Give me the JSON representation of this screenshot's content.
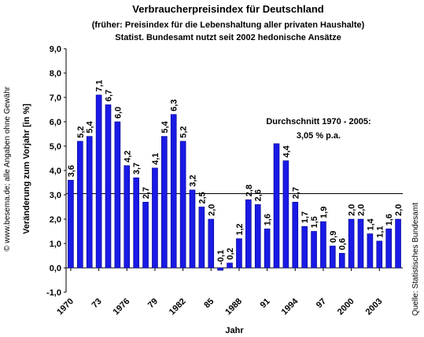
{
  "chart_data": {
    "type": "bar",
    "title": "Verbraucherpreisindex für Deutschland",
    "subtitle": "(früher: Preisindex für die Lebenshaltung aller privaten Haushalte)",
    "subtitle2": "Statist. Bundesamt nutzt seit 2002 hedonische Ansätze",
    "ylabel": "Veränderung zum Vorjahr [in %]",
    "xlabel": "Jahr",
    "copyright": "© www.besema.de; alle Angaben ohne Gewähr",
    "source": "Quelle: Statistisches Bundesamt",
    "annotation": "Durchschnitt 1970 - 2005:",
    "annotation2": "3,05 % p.a.",
    "average": 3.05,
    "color": "#1a1ae6",
    "categories": [
      "1970",
      null,
      null,
      "73",
      null,
      null,
      "1976",
      null,
      null,
      "79",
      null,
      null,
      "1982",
      null,
      null,
      "85",
      null,
      null,
      "1988",
      null,
      null,
      "91",
      null,
      null,
      "1994",
      null,
      null,
      "97",
      null,
      null,
      "2000",
      null,
      null,
      "2003",
      null,
      null
    ],
    "values": [
      3.6,
      5.2,
      5.4,
      7.1,
      6.7,
      6.0,
      4.2,
      3.7,
      2.7,
      4.1,
      5.4,
      6.3,
      5.2,
      3.2,
      2.5,
      2.0,
      -0.1,
      0.2,
      1.2,
      2.8,
      2.6,
      1.6,
      5.1,
      4.4,
      2.7,
      1.7,
      1.5,
      1.9,
      0.9,
      0.6,
      2.0,
      2.0,
      1.4,
      1.1,
      1.6,
      2.0
    ],
    "value_labels": [
      "3,6",
      "5,2",
      "5,4",
      "7,1",
      "6,7",
      "6,0",
      "4,2",
      "3,7",
      "2,7",
      "4,1",
      "5,4",
      "6,3",
      "5,2",
      "3,2",
      "2,5",
      "2,0",
      "-0,1",
      "0,2",
      "1,2",
      "2,8",
      "2,6",
      "1,6",
      null,
      "4,4",
      "2,7",
      "1,7",
      "1,5",
      "1,9",
      "0,9",
      "0,6",
      "2,0",
      "2,0",
      "1,4",
      "1,1",
      "1,6",
      "2,0"
    ],
    "ylim": [
      -1,
      9
    ],
    "yticks": [
      {
        "value": -1,
        "label": "-1,0"
      },
      {
        "value": 0,
        "label": "0,0"
      },
      {
        "value": 1,
        "label": "1,0"
      },
      {
        "value": 2,
        "label": "2,0"
      },
      {
        "value": 3,
        "label": "3,0"
      },
      {
        "value": 4,
        "label": "4,0"
      },
      {
        "value": 5,
        "label": "5,0"
      },
      {
        "value": 6,
        "label": "6,0"
      },
      {
        "value": 7,
        "label": "7,0"
      },
      {
        "value": 8,
        "label": "8,0"
      },
      {
        "value": 9,
        "label": "9,0"
      }
    ]
  }
}
